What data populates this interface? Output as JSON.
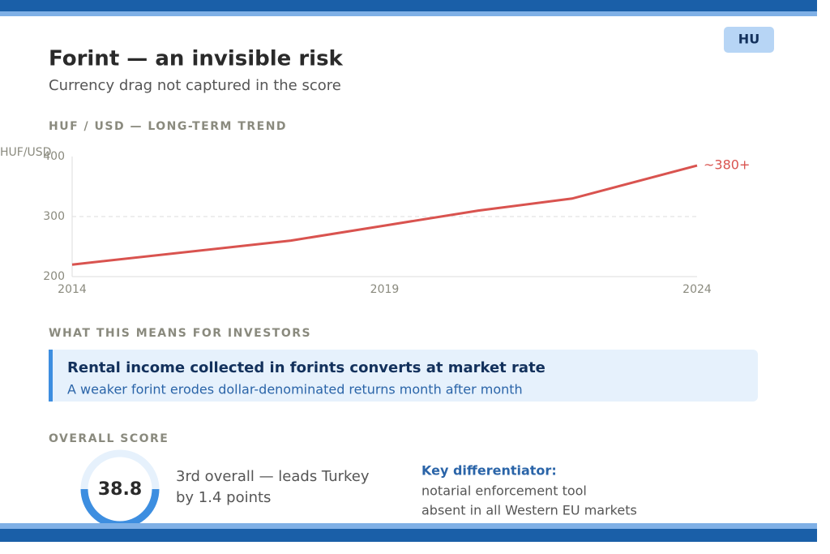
{
  "header": {
    "badge": "HU",
    "title": "Forint — an invisible risk",
    "subtitle": "Currency drag not captured in the score"
  },
  "trend_heading": "HUF / USD — LONG-TERM TREND",
  "chart_data": {
    "type": "line",
    "y_label": "HUF/USD",
    "x": [
      2014,
      2017.5,
      2019,
      2020.5,
      2022,
      2024
    ],
    "values": [
      220,
      260,
      285,
      310,
      330,
      385
    ],
    "color": "#d9534f",
    "xlim": [
      2014,
      2024
    ],
    "xticks": [
      2014,
      2019,
      2024
    ],
    "ylim": [
      200,
      400
    ],
    "yticks": [
      200,
      300,
      400
    ],
    "grid": true,
    "end_label": "~380+"
  },
  "investors": {
    "heading": "WHAT THIS MEANS FOR INVESTORS",
    "title": "Rental income collected in forints converts at market rate",
    "text": "A weaker forint erodes dollar-denominated returns month after month"
  },
  "score": {
    "heading": "OVERALL SCORE",
    "value": 38.8,
    "text_lines": [
      "3rd overall — leads Turkey",
      "by 1.4 points"
    ],
    "key_title": "Key differentiator:",
    "key_lines": [
      "notarial enforcement tool",
      "absent in all Western EU markets"
    ]
  }
}
